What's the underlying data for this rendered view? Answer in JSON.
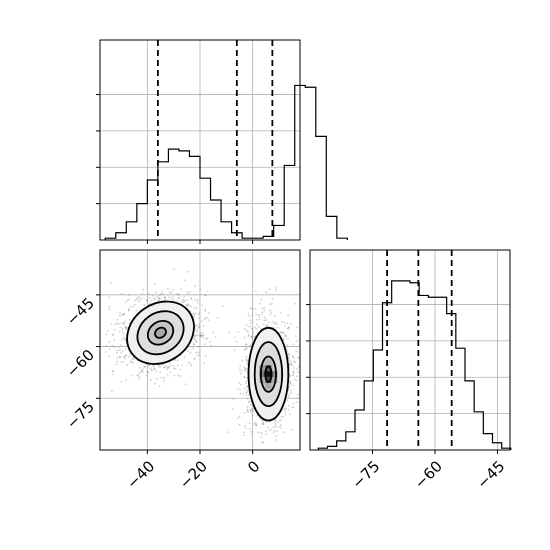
{
  "chart_data": {
    "type": "corner",
    "grid": true,
    "panels": [
      {
        "id": "hist-x",
        "type": "histogram",
        "xlim": [
          -58,
          18
        ],
        "ylim": [
          0,
          1.1
        ],
        "y_tick_values": [
          0.2,
          0.4,
          0.6,
          0.8
        ],
        "bin_start": -56,
        "bin_width": 4,
        "counts": [
          0.01,
          0.04,
          0.1,
          0.2,
          0.33,
          0.43,
          0.5,
          0.49,
          0.46,
          0.34,
          0.22,
          0.1,
          0.04,
          0.01,
          0.01,
          0.02,
          0.08,
          0.41,
          0.85,
          0.84,
          0.57,
          0.13,
          0.01
        ],
        "quantile_lines": [
          -36,
          -6,
          7.5
        ]
      },
      {
        "id": "scatter-xy",
        "type": "scatter_density",
        "xlim": [
          -58,
          18
        ],
        "ylim": [
          -90,
          -32
        ],
        "x_ticks": [
          "−40",
          "−20",
          "0"
        ],
        "x_tick_values": [
          -40,
          -20,
          0
        ],
        "y_ticks": [
          "−45",
          "−60",
          "−75"
        ],
        "y_tick_values": [
          -45,
          -60,
          -75
        ],
        "clusters": [
          {
            "center": [
              -35,
              -56
            ],
            "spread": [
              8,
              5
            ],
            "angle_deg": -35,
            "contour_levels": [
              1,
              2,
              3,
              3.7
            ]
          },
          {
            "center": [
              6,
              -68
            ],
            "spread": [
              4.5,
              8
            ],
            "angle_deg": 0,
            "contour_levels": [
              1,
              2,
              3,
              3.7
            ]
          }
        ]
      },
      {
        "id": "hist-y",
        "type": "histogram",
        "xlim": [
          -90,
          -42
        ],
        "ylim": [
          0,
          1.1
        ],
        "y_tick_values": [
          0.2,
          0.4,
          0.6,
          0.8
        ],
        "x_ticks": [
          "−75",
          "−60",
          "−45"
        ],
        "x_tick_values": [
          -75,
          -60,
          -45
        ],
        "bin_start": -88,
        "bin_width": 2.2,
        "counts": [
          0.01,
          0.02,
          0.05,
          0.1,
          0.22,
          0.38,
          0.55,
          0.81,
          0.93,
          0.93,
          0.92,
          0.85,
          0.84,
          0.84,
          0.75,
          0.56,
          0.38,
          0.21,
          0.09,
          0.04,
          0.01
        ],
        "quantile_lines": [
          -71.5,
          -64,
          -56
        ]
      }
    ]
  }
}
